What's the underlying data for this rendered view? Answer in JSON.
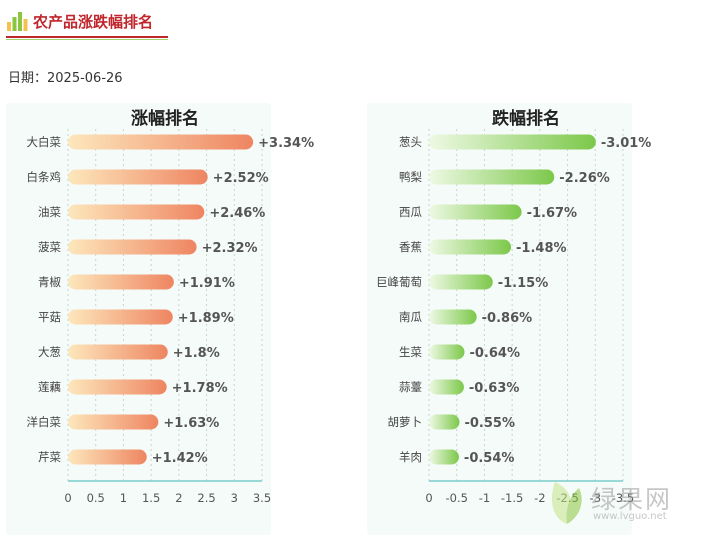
{
  "header": {
    "title": "农产品涨跌幅排名"
  },
  "date_line": "日期：2025-06-26",
  "watermark": {
    "text": "绿果网",
    "url": "www.lvguo.net"
  },
  "colors": {
    "gain_start": "#fde7bc",
    "gain_end": "#ee8561",
    "loss_start": "#eef9e4",
    "loss_end": "#7cc84a",
    "panel_bg": "#f5fbf8",
    "axis": "#79cccc",
    "title_red": "#c0272d"
  },
  "chart_data": [
    {
      "type": "bar",
      "orientation": "horizontal",
      "title": "涨幅排名",
      "categories": [
        "大白菜",
        "白条鸡",
        "油菜",
        "菠菜",
        "青椒",
        "平菇",
        "大葱",
        "莲藕",
        "洋白菜",
        "芹菜"
      ],
      "values": [
        3.34,
        2.52,
        2.46,
        2.32,
        1.91,
        1.89,
        1.8,
        1.78,
        1.63,
        1.42
      ],
      "value_labels": [
        "+3.34%",
        "+2.52%",
        "+2.46%",
        "+2.32%",
        "+1.91%",
        "+1.89%",
        "+1.8%",
        "+1.78%",
        "+1.63%",
        "+1.42%"
      ],
      "xlim": [
        0,
        3.5
      ],
      "xticks": [
        0,
        0.5,
        1,
        1.5,
        2,
        2.5,
        3,
        3.5
      ],
      "xtick_labels": [
        "0",
        "0.5",
        "1",
        "1.5",
        "2",
        "2.5",
        "3",
        "3.5"
      ],
      "grid": "vertical dashed"
    },
    {
      "type": "bar",
      "orientation": "horizontal",
      "title": "跌幅排名",
      "categories": [
        "葱头",
        "鸭梨",
        "西瓜",
        "香蕉",
        "巨峰葡萄",
        "南瓜",
        "生菜",
        "蒜薹",
        "胡萝卜",
        "羊肉"
      ],
      "values": [
        -3.01,
        -2.26,
        -1.67,
        -1.48,
        -1.15,
        -0.86,
        -0.64,
        -0.63,
        -0.55,
        -0.54
      ],
      "value_labels": [
        "-3.01%",
        "-2.26%",
        "-1.67%",
        "-1.48%",
        "-1.15%",
        "-0.86%",
        "-0.64%",
        "-0.63%",
        "-0.55%",
        "-0.54%"
      ],
      "xlim": [
        0,
        -3.5
      ],
      "xticks": [
        0,
        -0.5,
        -1,
        -1.5,
        -2,
        -2.5,
        -3,
        -3.5
      ],
      "xtick_labels": [
        "0",
        "-0.5",
        "-1",
        "-1.5",
        "-2",
        "-2.5",
        "-3",
        "-3.5"
      ],
      "grid": "vertical dashed"
    }
  ]
}
